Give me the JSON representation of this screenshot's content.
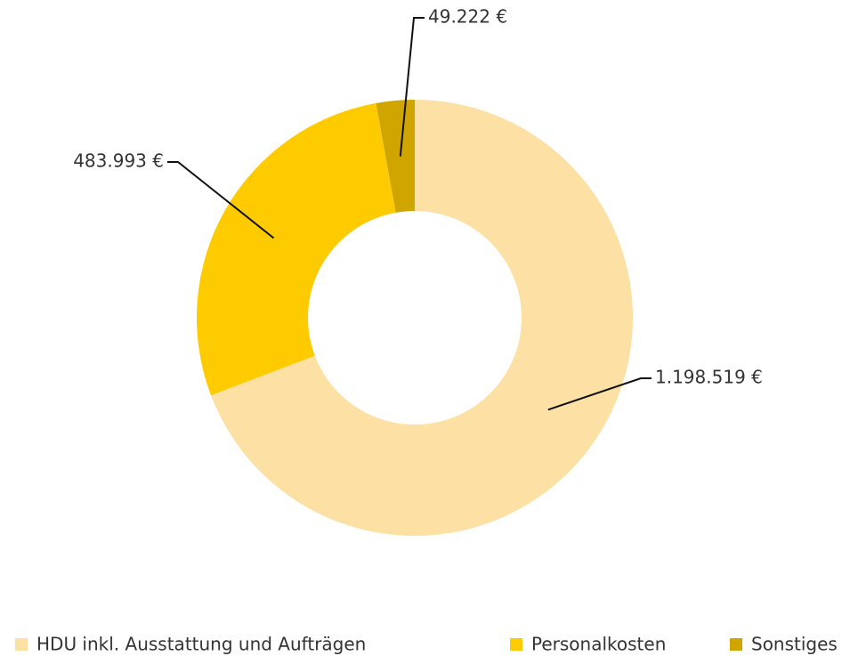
{
  "chart_data": {
    "type": "donut",
    "categories": [
      "HDU inkl. Ausstattung und Aufträgen",
      "Personalkosten",
      "Sonstiges"
    ],
    "values": [
      1198519,
      483993,
      49222
    ],
    "value_labels": [
      "1.198.519 €",
      "483.993 €",
      "49.222 €"
    ],
    "colors": [
      "#fde0a3",
      "#fecb00",
      "#d1a500"
    ],
    "legend": "bottom"
  }
}
